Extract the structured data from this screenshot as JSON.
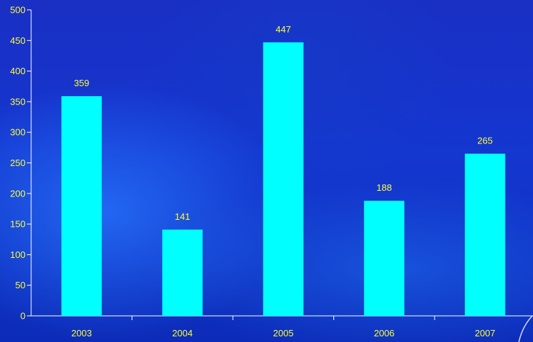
{
  "chart_data": {
    "type": "bar",
    "categories": [
      "2003",
      "2004",
      "2005",
      "2006",
      "2007"
    ],
    "values": [
      359,
      141,
      447,
      188,
      265
    ],
    "data_labels": [
      "359",
      "141",
      "447",
      "188",
      "265"
    ],
    "yticks": [
      "0",
      "50",
      "100",
      "150",
      "200",
      "250",
      "300",
      "350",
      "400",
      "450",
      "500"
    ],
    "ylim": [
      0,
      500
    ],
    "grid": false,
    "legend": "none",
    "title": "",
    "xlabel": "",
    "ylabel": "",
    "colors": {
      "bar": "#00ffff",
      "axis": "#ffffff",
      "labels": "#ffff33"
    }
  }
}
